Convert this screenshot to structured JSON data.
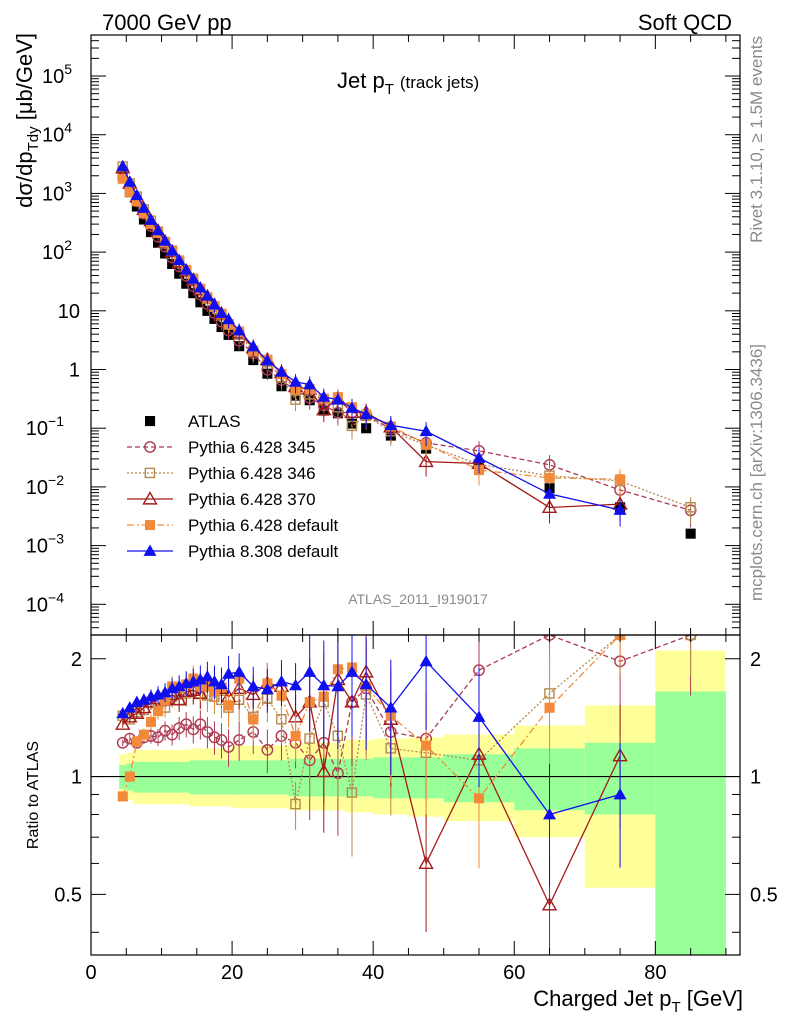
{
  "header": {
    "left": "7000 GeV pp",
    "right": "Soft QCD"
  },
  "title": {
    "main": "Jet p",
    "sub": "T",
    "note": "(track jets)"
  },
  "ylabel": {
    "main": {
      "pre": "dσ/dp",
      "sub": "Tdy",
      "post": " [μb/GeV]"
    },
    "ratio": "Ratio to ATLAS"
  },
  "xlabel": {
    "pre": "Charged Jet p",
    "sub": "T",
    "post": " [GeV]"
  },
  "side": {
    "version": "Rivet 3.1.10, ≥ 1.5M events",
    "source": "mcplots.cern.ch [arXiv:1306.3436]"
  },
  "analysis_tag": "ATLAS_2011_I919017",
  "colors": {
    "atlas": "#000000",
    "p345": "#ae3a52",
    "p346": "#b58a4d",
    "p370": "#a31a1a",
    "pdef": "#f28a3a",
    "p8": "#1010ee",
    "band_inner": "#99ff99",
    "band_outer": "#ffff99"
  },
  "chart_data": {
    "type": "scatter",
    "xlim": [
      0,
      92
    ],
    "ylim": [
      3e-05,
      500000
    ],
    "ylog": true,
    "ratio_ylim": [
      0.35,
      2.3
    ],
    "xticks": [
      0,
      20,
      40,
      60,
      80
    ],
    "yticks_labels": [
      "10^-4",
      "10^-3",
      "10^-2",
      "10^-1",
      "1",
      "10",
      "10^2",
      "10^3",
      "10^4",
      "10^5"
    ],
    "ratio_ticks": [
      "0.5",
      "1",
      "2"
    ],
    "x": [
      4.5,
      5.5,
      6.5,
      7.5,
      8.5,
      9.5,
      10.5,
      11.5,
      12.5,
      13.5,
      14.5,
      15.5,
      16.5,
      17.5,
      18.5,
      19.5,
      21,
      23,
      25,
      27,
      29,
      31,
      33,
      35,
      37,
      39,
      42.5,
      47.5,
      55,
      65,
      75,
      85
    ],
    "series": [
      {
        "name": "ATLAS",
        "key": "atlas",
        "marker": "square-filled",
        "values": [
          2000,
          1050,
          600,
          360,
          220,
          145,
          95,
          63,
          43,
          29,
          20,
          14,
          10,
          7.3,
          5.3,
          3.9,
          2.5,
          1.45,
          0.85,
          0.52,
          0.36,
          0.3,
          0.2,
          0.18,
          0.12,
          0.1,
          0.075,
          0.045,
          0.022,
          0.0095,
          0.0045,
          0.0016
        ]
      },
      {
        "name": "Pythia 6.428 345",
        "key": "p345",
        "marker": "circle-open",
        "line": "dashed",
        "ratio": [
          1.22,
          1.25,
          1.22,
          1.26,
          1.27,
          1.26,
          1.31,
          1.28,
          1.33,
          1.36,
          1.32,
          1.36,
          1.3,
          1.26,
          1.24,
          1.19,
          1.24,
          1.3,
          1.17,
          1.27,
          1.22,
          1.1,
          1.22,
          1.02,
          1.55,
          1.68,
          1.3,
          1.25,
          1.87,
          2.5,
          1.97,
          2.5
        ]
      },
      {
        "name": "Pythia 6.428 346",
        "key": "p346",
        "marker": "square-open",
        "line": "dotted",
        "ratio": [
          1.43,
          1.4,
          1.46,
          1.48,
          1.55,
          1.53,
          1.5,
          1.6,
          1.57,
          1.63,
          1.67,
          1.63,
          1.61,
          1.6,
          1.57,
          1.5,
          1.57,
          1.42,
          1.58,
          1.4,
          0.85,
          1.25,
          1.55,
          1.27,
          0.91,
          1.62,
          1.18,
          1.15,
          1.1,
          1.63,
          2.8,
          2.8
        ]
      },
      {
        "name": "Pythia 6.428 370",
        "key": "p370",
        "marker": "triangle-open",
        "line": "solid",
        "ratio": [
          1.36,
          1.42,
          1.45,
          1.5,
          1.55,
          1.58,
          1.57,
          1.62,
          1.57,
          1.65,
          1.66,
          1.63,
          1.74,
          1.72,
          1.68,
          1.6,
          1.68,
          1.62,
          1.73,
          1.7,
          1.42,
          1.55,
          1.03,
          1.77,
          1.55,
          1.85,
          1.4,
          0.6,
          1.14,
          0.47,
          1.13,
          null
        ]
      },
      {
        "name": "Pythia 6.428 default",
        "key": "pdef",
        "marker": "square-filled",
        "line": "dashdot",
        "ratio": [
          0.89,
          1.0,
          1.23,
          1.28,
          1.38,
          1.47,
          1.57,
          1.7,
          1.68,
          1.72,
          1.78,
          1.7,
          1.7,
          1.65,
          1.69,
          1.52,
          1.78,
          1.4,
          1.73,
          1.61,
          1.27,
          1.55,
          1.6,
          1.88,
          1.9,
          1.7,
          1.43,
          1.2,
          0.88,
          1.5,
          3.0,
          null
        ]
      },
      {
        "name": "Pythia 8.308 default",
        "key": "p8",
        "marker": "triangle-filled",
        "line": "solid",
        "ratio": [
          1.45,
          1.5,
          1.55,
          1.57,
          1.6,
          1.62,
          1.64,
          1.68,
          1.7,
          1.73,
          1.75,
          1.77,
          1.8,
          1.75,
          1.72,
          1.83,
          1.85,
          1.7,
          1.67,
          1.75,
          1.71,
          1.85,
          1.71,
          1.7,
          1.85,
          1.72,
          1.5,
          1.97,
          1.42,
          0.8,
          0.9,
          null
        ]
      }
    ],
    "band": [
      {
        "x0": 4,
        "x1": 5,
        "inner": [
          0.93,
          1.07
        ],
        "outer": [
          0.88,
          1.14
        ]
      },
      {
        "x0": 5,
        "x1": 6,
        "inner": [
          0.92,
          1.08
        ],
        "outer": [
          0.87,
          1.15
        ]
      },
      {
        "x0": 6,
        "x1": 14,
        "inner": [
          0.91,
          1.09
        ],
        "outer": [
          0.85,
          1.17
        ]
      },
      {
        "x0": 14,
        "x1": 20,
        "inner": [
          0.9,
          1.1
        ],
        "outer": [
          0.84,
          1.18
        ]
      },
      {
        "x0": 20,
        "x1": 28,
        "inner": [
          0.9,
          1.1
        ],
        "outer": [
          0.83,
          1.2
        ]
      },
      {
        "x0": 28,
        "x1": 36,
        "inner": [
          0.89,
          1.11
        ],
        "outer": [
          0.82,
          1.22
        ]
      },
      {
        "x0": 36,
        "x1": 40,
        "inner": [
          0.89,
          1.11
        ],
        "outer": [
          0.81,
          1.24
        ]
      },
      {
        "x0": 40,
        "x1": 45,
        "inner": [
          0.88,
          1.12
        ],
        "outer": [
          0.8,
          1.25
        ]
      },
      {
        "x0": 45,
        "x1": 50,
        "inner": [
          0.88,
          1.12
        ],
        "outer": [
          0.79,
          1.26
        ]
      },
      {
        "x0": 50,
        "x1": 60,
        "inner": [
          0.86,
          1.14
        ],
        "outer": [
          0.77,
          1.28
        ]
      },
      {
        "x0": 60,
        "x1": 70,
        "inner": [
          0.82,
          1.18
        ],
        "outer": [
          0.7,
          1.35
        ]
      },
      {
        "x0": 70,
        "x1": 80,
        "inner": [
          0.8,
          1.22
        ],
        "outer": [
          0.52,
          1.52
        ]
      },
      {
        "x0": 80,
        "x1": 90,
        "inner": [
          0.35,
          1.65
        ],
        "outer": [
          0.35,
          2.1
        ]
      }
    ]
  }
}
